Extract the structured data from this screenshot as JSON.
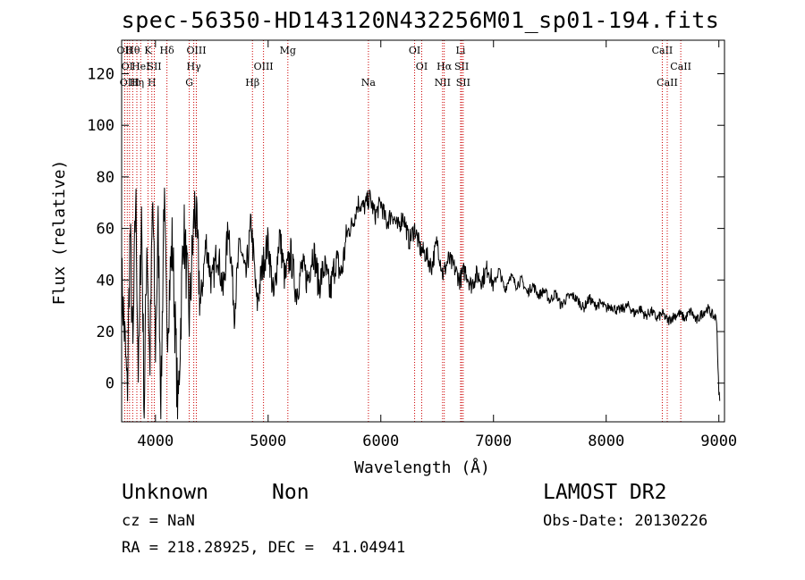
{
  "title": "spec-56350-HD143120N432256M01_sp01-194.fits",
  "footer": {
    "object_class": "Unknown",
    "subclass": "Non",
    "cz": "cz = NaN",
    "coords": "RA = 218.28925, DEC =  41.04941",
    "survey": "LAMOST DR2",
    "obs_date": "Obs-Date: 20130226"
  },
  "chart_data": {
    "type": "line",
    "xlabel": "Wavelength (Å)",
    "ylabel": "Flux (relative)",
    "xlim": [
      3700,
      9050
    ],
    "ylim": [
      -15,
      133
    ],
    "x_ticks": [
      4000,
      5000,
      6000,
      7000,
      8000,
      9000
    ],
    "y_ticks": [
      0,
      20,
      40,
      60,
      80,
      100,
      120
    ],
    "grid": false,
    "line_color": "#000000",
    "marker_color": "#cc0000",
    "series": [
      {
        "x": [
          3700,
          3725,
          3750,
          3775,
          3800,
          3825,
          3850,
          3875,
          3900,
          3925,
          3950,
          3975,
          4000,
          4025,
          4050,
          4075,
          4100,
          4150,
          4200,
          4250,
          4300,
          4350,
          4400,
          4450,
          4500,
          4550,
          4600,
          4650,
          4700,
          4750,
          4800,
          4850,
          4900,
          4950,
          5000,
          5050,
          5100,
          5150,
          5200,
          5250,
          5300,
          5350,
          5400,
          5450,
          5500,
          5550,
          5600,
          5650,
          5700,
          5750,
          5800,
          5850,
          5900,
          5950,
          6000,
          6050,
          6100,
          6150,
          6200,
          6250,
          6300,
          6350,
          6400,
          6450,
          6500,
          6550,
          6600,
          6650,
          6700,
          6750,
          6800,
          6850,
          6900,
          6950,
          7000,
          7050,
          7100,
          7150,
          7200,
          7250,
          7300,
          7350,
          7400,
          7450,
          7500,
          7550,
          7600,
          7650,
          7700,
          7750,
          7800,
          7850,
          7900,
          7950,
          8000,
          8050,
          8100,
          8150,
          8200,
          8250,
          8300,
          8350,
          8400,
          8450,
          8500,
          8550,
          8600,
          8650,
          8700,
          8750,
          8800,
          8850,
          8900,
          8950,
          8980,
          9000
        ],
        "y": [
          40,
          20,
          -5,
          60,
          10,
          75,
          0,
          70,
          -10,
          58,
          5,
          72,
          15,
          60,
          -10,
          75,
          20,
          55,
          -12,
          62,
          25,
          70,
          30,
          55,
          38,
          52,
          35,
          62,
          28,
          55,
          40,
          62,
          30,
          45,
          55,
          32,
          58,
          40,
          50,
          35,
          45,
          40,
          52,
          38,
          45,
          35,
          48,
          42,
          58,
          62,
          70,
          68,
          72,
          65,
          70,
          62,
          66,
          60,
          65,
          55,
          60,
          52,
          50,
          45,
          55,
          42,
          48,
          45,
          40,
          44,
          38,
          42,
          40,
          45,
          38,
          44,
          36,
          42,
          38,
          40,
          35,
          38,
          34,
          36,
          32,
          35,
          30,
          33,
          34,
          32,
          29,
          33,
          30,
          31,
          29,
          30,
          28,
          29,
          30,
          27,
          29,
          26,
          28,
          25,
          27,
          24,
          26,
          27,
          25,
          28,
          24,
          27,
          29,
          26,
          25,
          -5
        ]
      }
    ],
    "line_markers": [
      {
        "wavelength": 3727,
        "row": 0,
        "label": "OII"
      },
      {
        "wavelength": 3750,
        "row": 1,
        "label": "OI"
      },
      {
        "wavelength": 3770,
        "row": 2,
        "label": "OIII"
      },
      {
        "wavelength": 3798,
        "row": 0,
        "label": "Hθ"
      },
      {
        "wavelength": 3835,
        "row": 2,
        "label": "Hη"
      },
      {
        "wavelength": 3869,
        "row": 1,
        "label": "HeI"
      },
      {
        "wavelength": 3934,
        "row": 0,
        "label": "K"
      },
      {
        "wavelength": 3968,
        "row": 2,
        "label": "H"
      },
      {
        "wavelength": 3990,
        "row": 1,
        "label": "SII"
      },
      {
        "wavelength": 4102,
        "row": 0,
        "label": "Hδ"
      },
      {
        "wavelength": 4300,
        "row": 2,
        "label": "G"
      },
      {
        "wavelength": 4340,
        "row": 1,
        "label": "Hγ"
      },
      {
        "wavelength": 4363,
        "row": 0,
        "label": "OIII"
      },
      {
        "wavelength": 4861,
        "row": 2,
        "label": "Hβ"
      },
      {
        "wavelength": 4959,
        "row": 1,
        "label": "OIII"
      },
      {
        "wavelength": 5175,
        "row": 0,
        "label": "Mg"
      },
      {
        "wavelength": 5890,
        "row": 2,
        "label": "Na"
      },
      {
        "wavelength": 6300,
        "row": 0,
        "label": "OI"
      },
      {
        "wavelength": 6363,
        "row": 1,
        "label": "OI"
      },
      {
        "wavelength": 6548,
        "row": 2,
        "label": "NII"
      },
      {
        "wavelength": 6563,
        "row": 1,
        "label": "Hα"
      },
      {
        "wavelength": 6708,
        "row": 0,
        "label": "Li"
      },
      {
        "wavelength": 6717,
        "row": 1,
        "label": "SII"
      },
      {
        "wavelength": 6731,
        "row": 2,
        "label": "SII"
      },
      {
        "wavelength": 8498,
        "row": 0,
        "label": "CaII"
      },
      {
        "wavelength": 8542,
        "row": 2,
        "label": "CaII"
      },
      {
        "wavelength": 8662,
        "row": 1,
        "label": "CaII"
      }
    ]
  }
}
